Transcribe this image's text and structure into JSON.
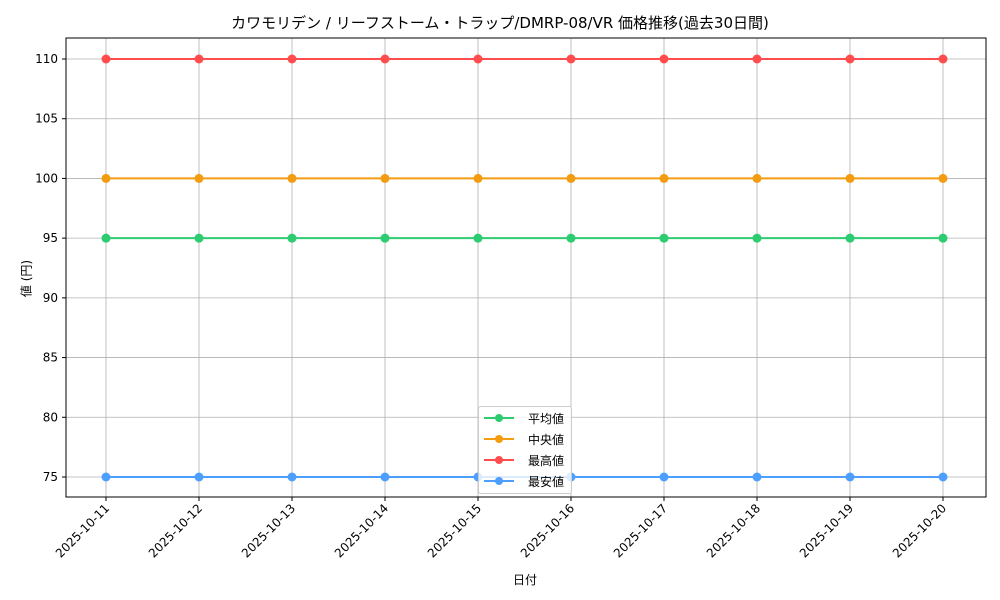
{
  "chart_data": {
    "type": "line",
    "title": "カワモリデン / リーフストーム・トラップ/DMRP-08/VR 価格推移(過去30日間)",
    "xlabel": "日付",
    "ylabel": "値 (円)",
    "categories": [
      "2025-10-11",
      "2025-10-12",
      "2025-10-13",
      "2025-10-14",
      "2025-10-15",
      "2025-10-16",
      "2025-10-17",
      "2025-10-18",
      "2025-10-19",
      "2025-10-20"
    ],
    "yticks": [
      75,
      80,
      85,
      90,
      95,
      100,
      105,
      110
    ],
    "ylim": [
      73.25,
      111.75
    ],
    "grid": true,
    "legend_position": "lower center",
    "series": [
      {
        "name": "平均値",
        "color": "#2ecc71",
        "values": [
          95,
          95,
          95,
          95,
          95,
          95,
          95,
          95,
          95,
          95
        ]
      },
      {
        "name": "中央値",
        "color": "#f39c12",
        "values": [
          100,
          100,
          100,
          100,
          100,
          100,
          100,
          100,
          100,
          100
        ]
      },
      {
        "name": "最高値",
        "color": "#ff4d4d",
        "values": [
          110,
          110,
          110,
          110,
          110,
          110,
          110,
          110,
          110,
          110
        ]
      },
      {
        "name": "最安値",
        "color": "#4d9fff",
        "values": [
          75,
          75,
          75,
          75,
          75,
          75,
          75,
          75,
          75,
          75
        ]
      }
    ]
  }
}
